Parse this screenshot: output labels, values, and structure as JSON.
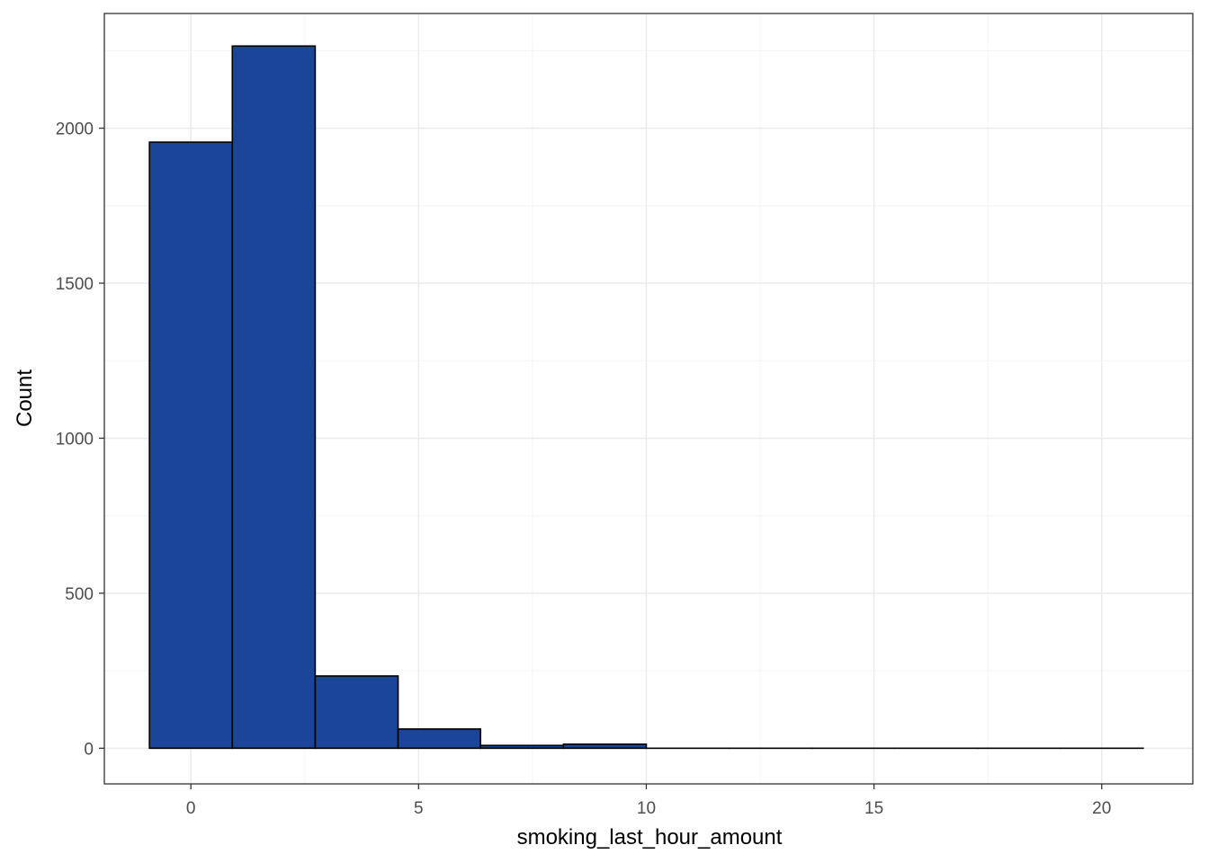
{
  "chart_data": {
    "type": "bar",
    "title": "",
    "xlabel": "smoking_last_hour_amount",
    "ylabel": "Count",
    "xlim": [
      -1.9,
      22.0
    ],
    "ylim": [
      -115,
      2370
    ],
    "x_ticks": [
      0,
      5,
      10,
      15,
      20
    ],
    "x_tick_labels": [
      "0",
      "5",
      "10",
      "15",
      "20"
    ],
    "y_ticks": [
      0,
      500,
      1000,
      1500,
      2000
    ],
    "y_tick_labels": [
      "0",
      "500",
      "1000",
      "1500",
      "2000"
    ],
    "grid": true,
    "legend": "none",
    "bins": [
      {
        "x0": -0.91,
        "x1": 0.91,
        "count": 1955
      },
      {
        "x0": 0.91,
        "x1": 2.73,
        "count": 2265
      },
      {
        "x0": 2.73,
        "x1": 4.55,
        "count": 233
      },
      {
        "x0": 4.55,
        "x1": 6.36,
        "count": 62
      },
      {
        "x0": 6.36,
        "x1": 8.18,
        "count": 9
      },
      {
        "x0": 8.18,
        "x1": 10.0,
        "count": 13
      },
      {
        "x0": 10.0,
        "x1": 11.82,
        "count": 0
      },
      {
        "x0": 11.82,
        "x1": 13.64,
        "count": 0
      },
      {
        "x0": 13.64,
        "x1": 15.45,
        "count": 0
      },
      {
        "x0": 15.45,
        "x1": 17.27,
        "count": 0
      },
      {
        "x0": 17.27,
        "x1": 19.09,
        "count": 0
      },
      {
        "x0": 19.09,
        "x1": 20.91,
        "count": 0
      }
    ],
    "colors": {
      "fill": "#1a4598",
      "outline": "#000000",
      "grid_major": "#ebebeb",
      "grid_minor": "#f5f5f5",
      "panel_border": "#333333",
      "tick_text": "#4d4d4d"
    }
  }
}
